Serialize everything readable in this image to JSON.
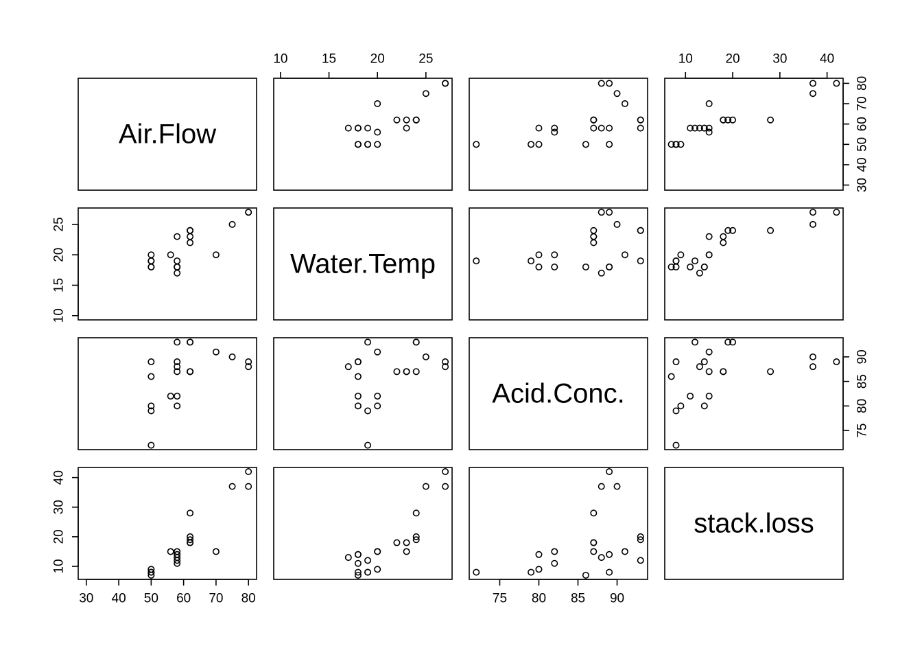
{
  "chart_data": {
    "type": "scatter",
    "kind": "scatterplot-matrix",
    "title": "",
    "variables": [
      {
        "name": "Air.Flow",
        "range": [
          27.5,
          82.5
        ],
        "ticks": [
          30,
          40,
          50,
          60,
          70,
          80
        ]
      },
      {
        "name": "Water.Temp",
        "range": [
          9.3,
          27.7
        ],
        "ticks": [
          10,
          15,
          20,
          25
        ]
      },
      {
        "name": "Acid.Conc.",
        "range": [
          71.1,
          93.9
        ],
        "ticks": [
          75,
          80,
          85,
          90
        ]
      },
      {
        "name": "stack.loss",
        "range": [
          5.6,
          43.4
        ],
        "ticks": [
          10,
          20,
          30,
          40
        ]
      }
    ],
    "observations": [
      [
        80,
        27,
        89,
        42
      ],
      [
        80,
        27,
        88,
        37
      ],
      [
        75,
        25,
        90,
        37
      ],
      [
        62,
        24,
        87,
        28
      ],
      [
        62,
        22,
        87,
        18
      ],
      [
        62,
        23,
        87,
        18
      ],
      [
        62,
        24,
        93,
        19
      ],
      [
        62,
        24,
        93,
        20
      ],
      [
        58,
        23,
        87,
        15
      ],
      [
        58,
        18,
        80,
        14
      ],
      [
        58,
        18,
        89,
        14
      ],
      [
        58,
        17,
        88,
        13
      ],
      [
        58,
        18,
        82,
        11
      ],
      [
        58,
        19,
        93,
        12
      ],
      [
        50,
        18,
        89,
        8
      ],
      [
        50,
        18,
        86,
        7
      ],
      [
        50,
        19,
        72,
        8
      ],
      [
        50,
        19,
        79,
        8
      ],
      [
        50,
        20,
        80,
        9
      ],
      [
        56,
        20,
        82,
        15
      ],
      [
        70,
        20,
        91,
        15
      ]
    ],
    "grid": false,
    "legend": "none"
  }
}
